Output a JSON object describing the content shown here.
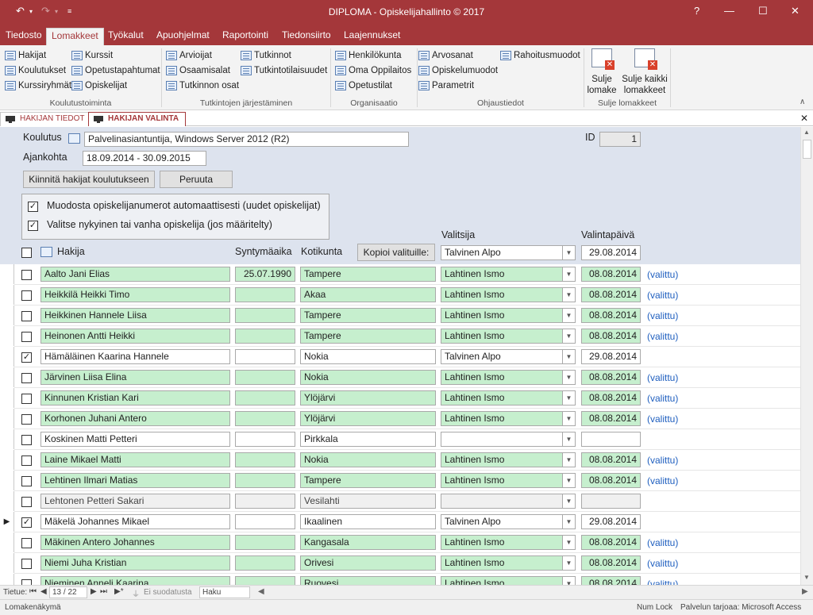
{
  "window": {
    "title": "DIPLOMA - Opiskelijahallinto © 2017",
    "help": "?"
  },
  "menu": [
    "Tiedosto",
    "Lomakkeet",
    "Työkalut",
    "Apuohjelmat",
    "Raportointi",
    "Tiedonsiirto",
    "Laajennukset"
  ],
  "ribbon": {
    "col1": [
      "Hakijat",
      "Koulutukset",
      "Kurssiryhmät"
    ],
    "col2": [
      "Kurssit",
      "Opetustapahtumat",
      "Opiskelijat"
    ],
    "col3": [
      "Arvioijat",
      "Osaamisalat",
      "Tutkinnon osat"
    ],
    "col4": [
      "Tutkinnot",
      "Tutkintotilaisuudet"
    ],
    "col5": [
      "Henkilökunta",
      "Oma Oppilaitos",
      "Opetustilat"
    ],
    "col6": [
      "Arvosanat",
      "Opiskelumuodot",
      "Parametrit"
    ],
    "col7": [
      "Rahoitusmuodot"
    ],
    "groups": [
      "Koulutustoiminta",
      "Tutkintojen järjestäminen",
      "Organisaatio",
      "Ohjaustiedot",
      "Sulje lomakkeet"
    ],
    "close_form": "Sulje\nlomake",
    "close_all": "Sulje kaikki\nlomakkeet"
  },
  "doc_tabs": [
    "HAKIJAN TIEDOT",
    "HAKIJAN VALINTA"
  ],
  "header": {
    "koulutus_label": "Koulutus",
    "koulutus_value": "Palvelinasiantuntija, Windows Server 2012 (R2)",
    "ajankohta_label": "Ajankohta",
    "ajankohta_value": "18.09.2014 - 30.09.2015",
    "id_label": "ID",
    "id_value": "1",
    "btn_attach": "Kiinnitä hakijat koulutukseen",
    "btn_cancel": "Peruuta",
    "opt1": "Muodosta opiskelijanumerot automaattisesti (uudet opiskelijat)",
    "opt2": "Valitse nykyinen tai vanha opiskelija (jos määritelty)",
    "col_hakija": "Hakija",
    "col_syntymaaika": "Syntymäaika",
    "col_kotikunta": "Kotikunta",
    "btn_copy": "Kopioi valituille:",
    "col_valitsija": "Valitsija",
    "col_valintapaiva": "Valintapäivä",
    "copy_valitsija": "Talvinen Alpo",
    "copy_paiva": "29.08.2014"
  },
  "rows": [
    {
      "name": "Aalto Jani Elias",
      "birth": "25.07.1990",
      "town": "Tampere",
      "selector": "Lahtinen Ismo",
      "date": "08.08.2014",
      "status": "(valittu)",
      "checked": false,
      "style": "g",
      "current": false
    },
    {
      "name": "Heikkilä Heikki Timo",
      "birth": "",
      "town": "Akaa",
      "selector": "Lahtinen Ismo",
      "date": "08.08.2014",
      "status": "(valittu)",
      "checked": false,
      "style": "g",
      "current": false
    },
    {
      "name": "Heikkinen Hannele Liisa",
      "birth": "",
      "town": "Tampere",
      "selector": "Lahtinen Ismo",
      "date": "08.08.2014",
      "status": "(valittu)",
      "checked": false,
      "style": "g",
      "current": false
    },
    {
      "name": "Heinonen Antti Heikki",
      "birth": "",
      "town": "Tampere",
      "selector": "Lahtinen Ismo",
      "date": "08.08.2014",
      "status": "(valittu)",
      "checked": false,
      "style": "g",
      "current": false
    },
    {
      "name": "Hämäläinen Kaarina Hannele",
      "birth": "",
      "town": "Nokia",
      "selector": "Talvinen Alpo",
      "date": "29.08.2014",
      "status": "",
      "checked": true,
      "style": "w",
      "current": false
    },
    {
      "name": "Järvinen Liisa Elina",
      "birth": "",
      "town": "Nokia",
      "selector": "Lahtinen Ismo",
      "date": "08.08.2014",
      "status": "(valittu)",
      "checked": false,
      "style": "g",
      "current": false
    },
    {
      "name": "Kinnunen Kristian Kari",
      "birth": "",
      "town": "Ylöjärvi",
      "selector": "Lahtinen Ismo",
      "date": "08.08.2014",
      "status": "(valittu)",
      "checked": false,
      "style": "g",
      "current": false
    },
    {
      "name": "Korhonen Juhani Antero",
      "birth": "",
      "town": "Ylöjärvi",
      "selector": "Lahtinen Ismo",
      "date": "08.08.2014",
      "status": "(valittu)",
      "checked": false,
      "style": "g",
      "current": false
    },
    {
      "name": "Koskinen Matti Petteri",
      "birth": "",
      "town": "Pirkkala",
      "selector": "",
      "date": "",
      "status": "",
      "checked": false,
      "style": "w",
      "current": false
    },
    {
      "name": "Laine Mikael Matti",
      "birth": "",
      "town": "Nokia",
      "selector": "Lahtinen Ismo",
      "date": "08.08.2014",
      "status": "(valittu)",
      "checked": false,
      "style": "g",
      "current": false
    },
    {
      "name": "Lehtinen Ilmari Matias",
      "birth": "",
      "town": "Tampere",
      "selector": "Lahtinen Ismo",
      "date": "08.08.2014",
      "status": "(valittu)",
      "checked": false,
      "style": "g",
      "current": false
    },
    {
      "name": "Lehtonen Petteri Sakari",
      "birth": "",
      "town": "Vesilahti",
      "selector": "",
      "date": "",
      "status": "",
      "checked": false,
      "style": "gray",
      "current": false
    },
    {
      "name": "Mäkelä Johannes Mikael",
      "birth": "",
      "town": "Ikaalinen",
      "selector": "Talvinen Alpo",
      "date": "29.08.2014",
      "status": "",
      "checked": true,
      "style": "w",
      "current": true
    },
    {
      "name": "Mäkinen Antero Johannes",
      "birth": "",
      "town": "Kangasala",
      "selector": "Lahtinen Ismo",
      "date": "08.08.2014",
      "status": "(valittu)",
      "checked": false,
      "style": "g",
      "current": false
    },
    {
      "name": "Niemi Juha Kristian",
      "birth": "",
      "town": "Orivesi",
      "selector": "Lahtinen Ismo",
      "date": "08.08.2014",
      "status": "(valittu)",
      "checked": false,
      "style": "g",
      "current": false
    },
    {
      "name": "Nieminen Anneli Kaarina",
      "birth": "",
      "town": "Ruovesi",
      "selector": "Lahtinen Ismo",
      "date": "08.08.2014",
      "status": "(valittu)",
      "checked": false,
      "style": "g",
      "current": false
    }
  ],
  "nav": {
    "label": "Tietue:",
    "position": "13 / 22",
    "filter": "Ei suodatusta",
    "search": "Haku"
  },
  "status": {
    "left": "Lomakenäkymä",
    "numlock": "Num Lock",
    "provider": "Palvelun tarjoaa: Microsoft Access"
  }
}
